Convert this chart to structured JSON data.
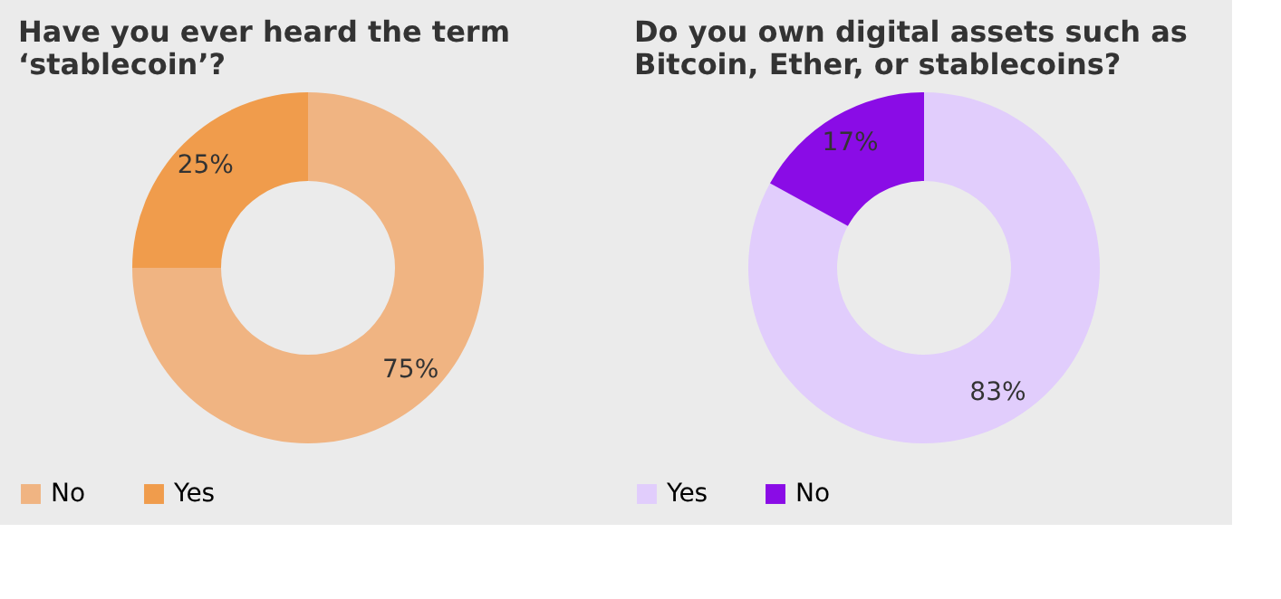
{
  "chart_data": [
    {
      "type": "donut",
      "title": "Have you ever heard the term ‘stablecoin’?",
      "categories": [
        "No",
        "Yes"
      ],
      "values": [
        75,
        25
      ],
      "colors": [
        "#f0b482",
        "#f09c4c"
      ],
      "value_labels": [
        "75%",
        "25%"
      ],
      "legend": "bottom"
    },
    {
      "type": "donut",
      "title": "Do you own digital assets such as Bitcoin, Ether, or stablecoins?",
      "categories": [
        "Yes",
        "No"
      ],
      "values": [
        83,
        17
      ],
      "colors": [
        "#e1cdfc",
        "#8a0ce6"
      ],
      "value_labels": [
        "83%",
        "17%"
      ],
      "legend": "bottom"
    }
  ]
}
